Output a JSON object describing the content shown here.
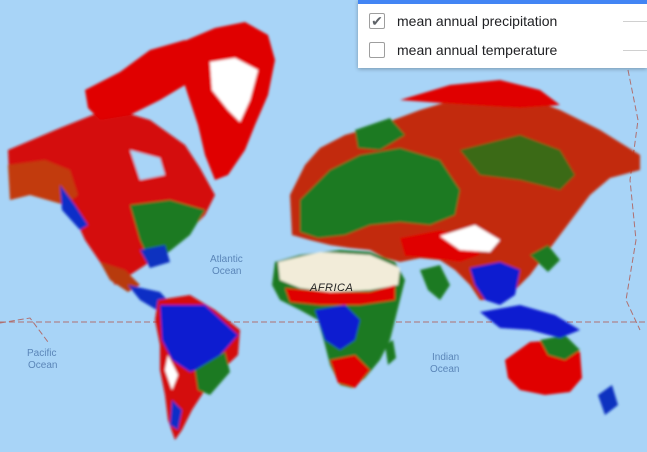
{
  "layers": [
    {
      "label": "mean annual precipitation",
      "checked": true,
      "check_glyph": "✔"
    },
    {
      "label": "mean annual temperature",
      "checked": false,
      "check_glyph": ""
    }
  ],
  "map": {
    "ocean_labels": {
      "atlantic_1": "Atlantic",
      "atlantic_2": "Ocean",
      "pacific_1": "Pacific",
      "pacific_2": "Ocean",
      "indian_1": "Indian",
      "indian_2": "Ocean"
    },
    "continent_labels": {
      "africa": "AFRICA"
    },
    "colors": {
      "ocean": "#a8d4f7",
      "low_precipitation": "#e00000",
      "medium_precipitation": "#1e7a1e",
      "high_precipitation": "#0018d0",
      "no_data": "#ffffff",
      "desert_basemap": "#f2ecd9",
      "boundary_dash": "#b07070"
    },
    "legend_meaning": [
      "red = low",
      "green = medium",
      "blue = high"
    ]
  }
}
